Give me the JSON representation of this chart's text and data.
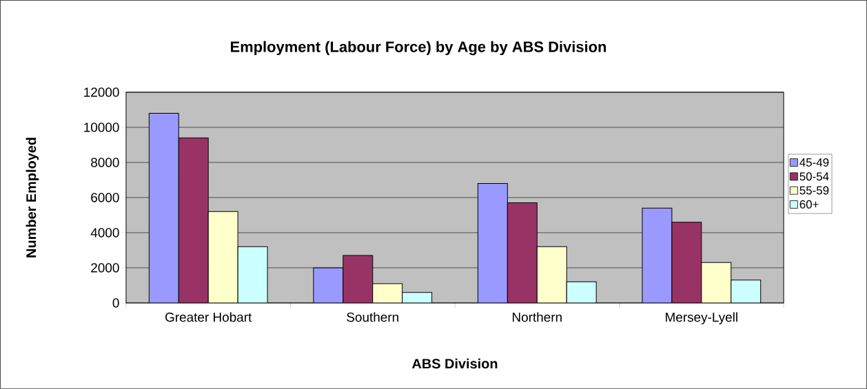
{
  "chart_data": {
    "type": "bar",
    "title": "Employment (Labour Force) by Age by ABS Division",
    "xlabel": "ABS Division",
    "ylabel": "Number Employed",
    "categories": [
      "Greater Hobart",
      "Southern",
      "Northern",
      "Mersey-Lyell"
    ],
    "series": [
      {
        "name": "45-49",
        "color": "#9999ff",
        "values": [
          10800,
          2000,
          6800,
          5400
        ]
      },
      {
        "name": "50-54",
        "color": "#993366",
        "values": [
          9400,
          2700,
          5700,
          4600
        ]
      },
      {
        "name": "55-59",
        "color": "#ffffcc",
        "values": [
          5200,
          1100,
          3200,
          2300
        ]
      },
      {
        "name": "60+",
        "color": "#ccffff",
        "values": [
          3200,
          600,
          1200,
          1300
        ]
      }
    ],
    "ylim": [
      0,
      12000
    ],
    "yticks": [
      0,
      2000,
      4000,
      6000,
      8000,
      10000,
      12000
    ],
    "grid": "y",
    "legend": "right"
  }
}
